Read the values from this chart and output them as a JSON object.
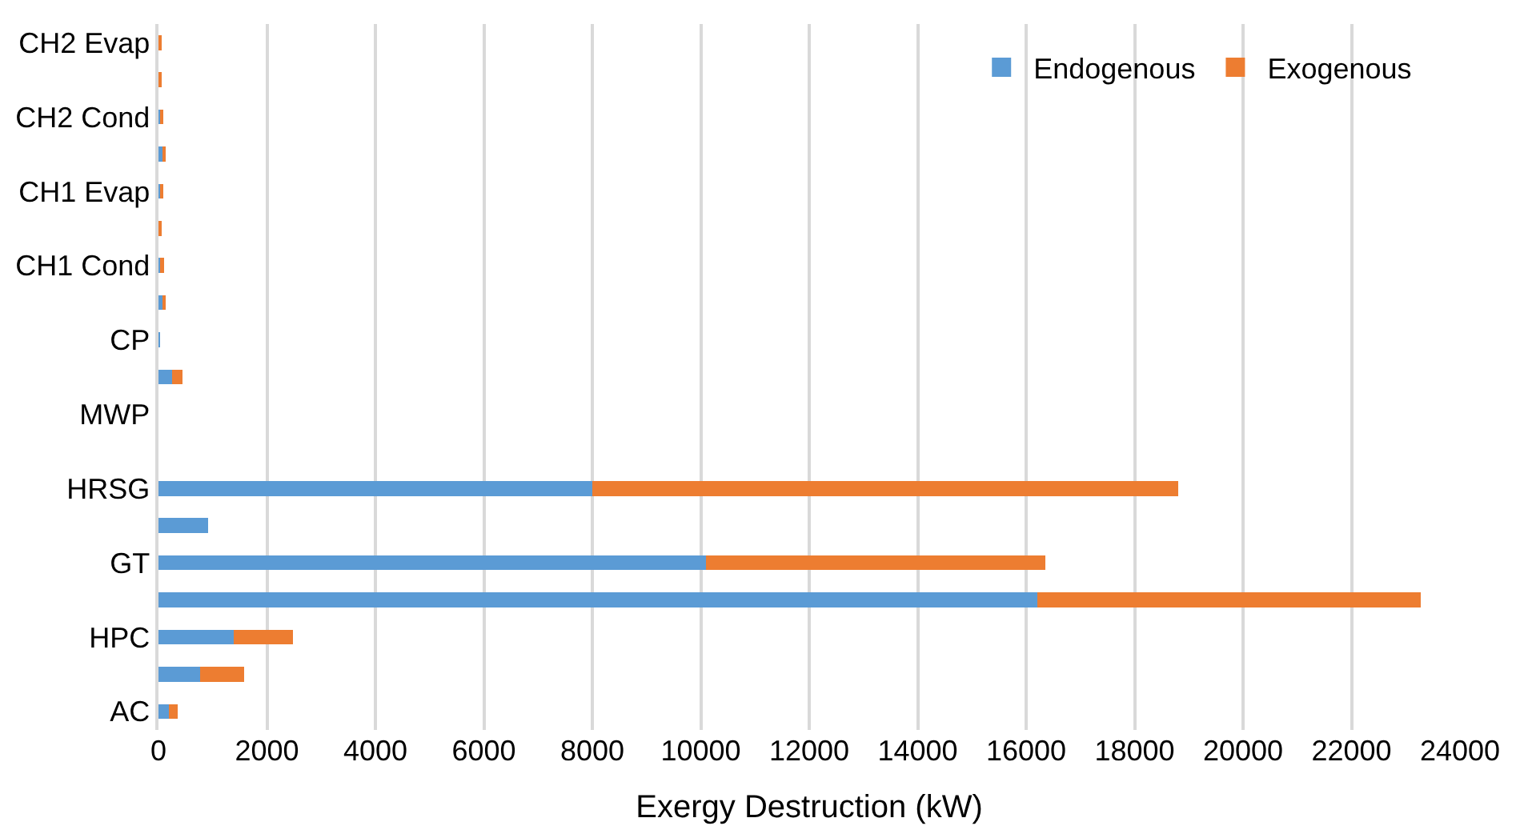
{
  "chart_data": {
    "type": "bar",
    "orientation": "horizontal",
    "stacked": true,
    "xlabel": "Exergy Destruction (kW)",
    "categories": [
      "CH2 Evap",
      null,
      "CH2 Cond",
      null,
      "CH1 Evap",
      null,
      "CH1 Cond",
      null,
      "CP",
      null,
      "MWP",
      null,
      "HRSG",
      null,
      "GT",
      null,
      "HPC",
      null,
      "AC"
    ],
    "series": [
      {
        "name": "Endogenous",
        "color": "#5b9bd5",
        "values": [
          20,
          0,
          40,
          70,
          30,
          0,
          50,
          70,
          10,
          250,
          0,
          0,
          8000,
          910,
          10100,
          16200,
          1390,
          760,
          190
        ]
      },
      {
        "name": "Exogenous",
        "color": "#ed7d31",
        "values": [
          30,
          50,
          40,
          70,
          40,
          40,
          50,
          70,
          0,
          190,
          0,
          0,
          10800,
          0,
          6260,
          7070,
          1090,
          820,
          170
        ]
      }
    ],
    "xlim": [
      0,
      24000
    ],
    "xticks": [
      0,
      2000,
      4000,
      6000,
      8000,
      10000,
      12000,
      14000,
      16000,
      18000,
      20000,
      22000,
      24000
    ],
    "grid": "x",
    "legend": "top right"
  }
}
